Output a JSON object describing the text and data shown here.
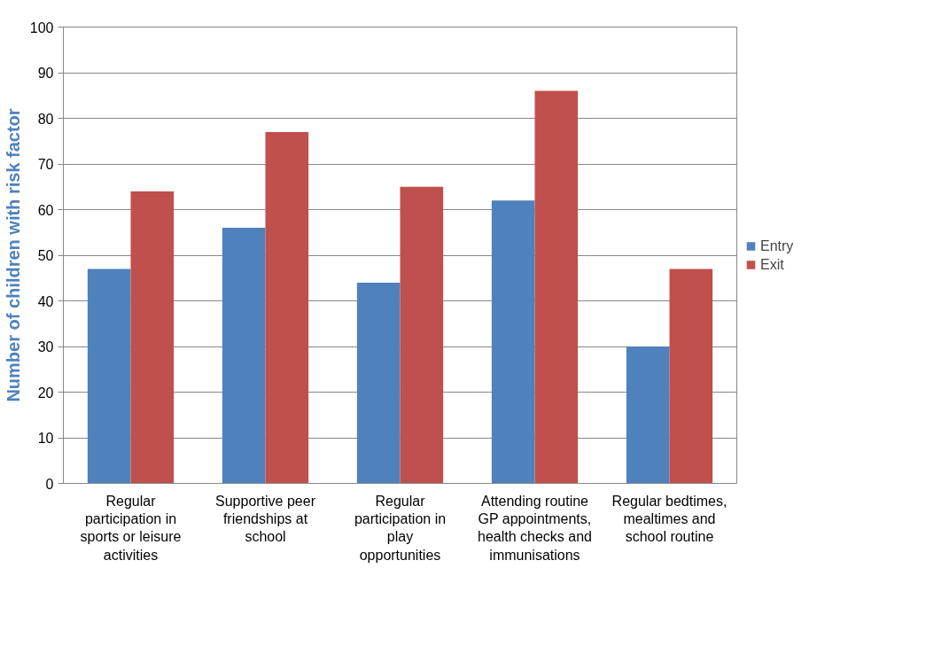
{
  "chart_data": {
    "type": "bar",
    "ylabel": "Number of children with risk factor",
    "categories": [
      "Regular participation in sports or leisure activities",
      "Supportive peer friendships at school",
      "Regular participation in play opportunities",
      "Attending routine GP appointments, health checks and immunisations",
      "Regular bedtimes, mealtimes and school routine"
    ],
    "series": [
      {
        "name": "Entry",
        "color": "#4f81bd",
        "values": [
          47,
          56,
          44,
          62,
          30
        ]
      },
      {
        "name": "Exit",
        "color": "#c0504d",
        "values": [
          64,
          77,
          65,
          86,
          47
        ]
      }
    ],
    "ylim": [
      0,
      100
    ],
    "yticks": [
      0,
      10,
      20,
      30,
      40,
      50,
      60,
      70,
      80,
      90,
      100
    ],
    "grid": "y",
    "legend": "right"
  }
}
